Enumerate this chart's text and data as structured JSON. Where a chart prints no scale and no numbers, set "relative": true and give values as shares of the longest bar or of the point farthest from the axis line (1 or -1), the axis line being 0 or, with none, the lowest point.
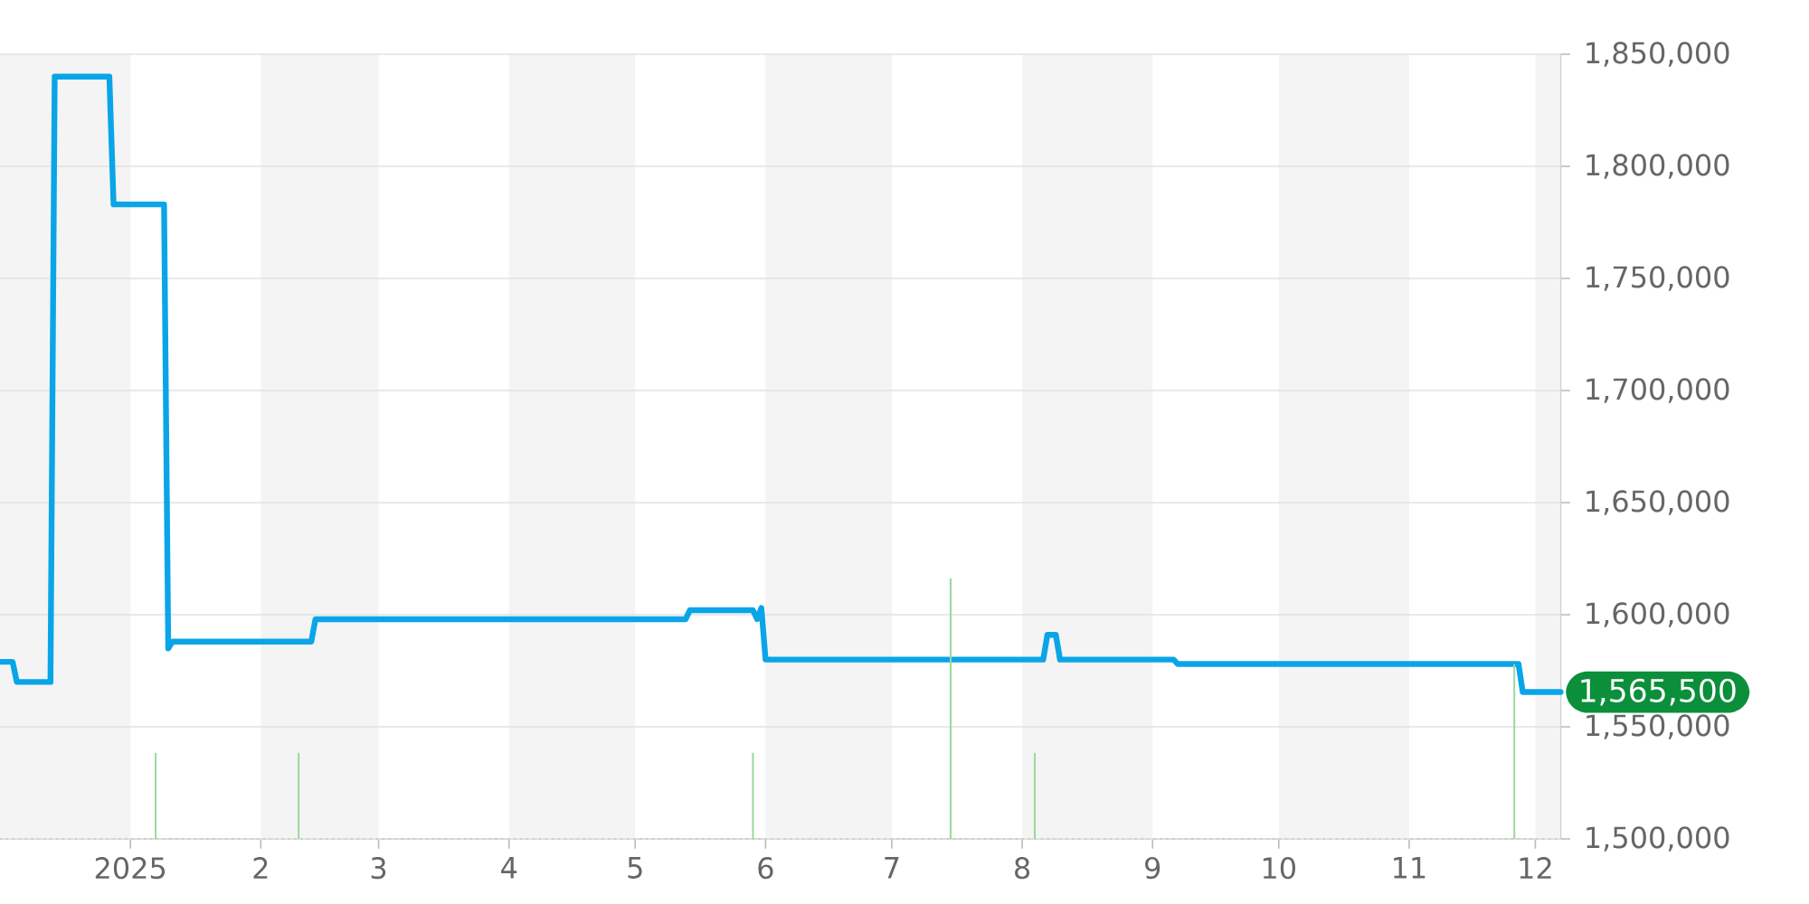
{
  "chart_data": [
    {
      "type": "line",
      "xlim": [
        "2024-12-01",
        "2025-12-07"
      ],
      "xticks": [
        {
          "value": "2025-01-01",
          "label": "2025"
        },
        {
          "value": "2025-02-01",
          "label": "2"
        },
        {
          "value": "2025-03-01",
          "label": "3"
        },
        {
          "value": "2025-04-01",
          "label": "4"
        },
        {
          "value": "2025-05-01",
          "label": "5"
        },
        {
          "value": "2025-06-01",
          "label": "6"
        },
        {
          "value": "2025-07-01",
          "label": "7"
        },
        {
          "value": "2025-08-01",
          "label": "8"
        },
        {
          "value": "2025-09-01",
          "label": "9"
        },
        {
          "value": "2025-10-01",
          "label": "10"
        },
        {
          "value": "2025-11-01",
          "label": "11"
        },
        {
          "value": "2025-12-01",
          "label": "12"
        }
      ],
      "ylim": [
        1500000,
        1850000
      ],
      "yticks": [
        {
          "value": 1500000,
          "label": "1,500,000"
        },
        {
          "value": 1550000,
          "label": "1,550,000"
        },
        {
          "value": 1600000,
          "label": "1,600,000"
        },
        {
          "value": 1650000,
          "label": "1,650,000"
        },
        {
          "value": 1700000,
          "label": "1,700,000"
        },
        {
          "value": 1750000,
          "label": "1,750,000"
        },
        {
          "value": 1800000,
          "label": "1,800,000"
        },
        {
          "value": 1850000,
          "label": "1,850,000"
        }
      ],
      "grid": "y",
      "series": [
        {
          "color": "#0aa5e8",
          "x": [
            "2024-12-01",
            "2024-12-04",
            "2024-12-05",
            "2024-12-13",
            "2024-12-14",
            "2024-12-27",
            "2024-12-28",
            "2025-01-09",
            "2025-01-10",
            "2025-01-11",
            "2025-02-13",
            "2025-02-14",
            "2025-05-13",
            "2025-05-14",
            "2025-05-29",
            "2025-05-30",
            "2025-05-31",
            "2025-06-01",
            "2025-08-06",
            "2025-08-07",
            "2025-08-09",
            "2025-08-10",
            "2025-09-06",
            "2025-09-07",
            "2025-11-27",
            "2025-11-28",
            "2025-12-07"
          ],
          "values": [
            1579000,
            1579000,
            1570000,
            1570000,
            1840000,
            1840000,
            1783000,
            1783000,
            1585000,
            1588000,
            1588000,
            1598000,
            1598000,
            1602000,
            1602000,
            1598000,
            1603000,
            1580000,
            1580000,
            1591000,
            1591000,
            1580000,
            1580000,
            1578000,
            1578000,
            1565500,
            1565500
          ]
        }
      ],
      "bands": [
        {
          "axis": "x",
          "from": "2024-12-01",
          "to": "2025-01-01",
          "color": "#f4f4f4"
        },
        {
          "axis": "x",
          "from": "2025-02-01",
          "to": "2025-03-01",
          "color": "#f4f4f4"
        },
        {
          "axis": "x",
          "from": "2025-04-01",
          "to": "2025-05-01",
          "color": "#f4f4f4"
        },
        {
          "axis": "x",
          "from": "2025-06-01",
          "to": "2025-07-01",
          "color": "#f4f4f4"
        },
        {
          "axis": "x",
          "from": "2025-08-01",
          "to": "2025-09-01",
          "color": "#f4f4f4"
        },
        {
          "axis": "x",
          "from": "2025-10-01",
          "to": "2025-11-01",
          "color": "#f4f4f4"
        },
        {
          "axis": "x",
          "from": "2025-12-01",
          "to": "2025-12-07",
          "color": "#f4f4f4"
        }
      ],
      "annotations": [
        {
          "text": "1,565,500",
          "x": "2025-12-07",
          "y": 1565500
        }
      ]
    },
    {
      "type": "bar",
      "relative": true,
      "xlim": [
        "2024-12-01",
        "2025-12-07"
      ],
      "series": [
        {
          "color": "#9ad89d",
          "x": [
            "2025-01-07",
            "2025-02-10",
            "2025-05-29",
            "2025-07-15",
            "2025-08-04",
            "2025-11-26"
          ],
          "values": [
            0.33,
            0.33,
            0.33,
            1,
            0.33,
            0.67
          ]
        }
      ]
    }
  ]
}
